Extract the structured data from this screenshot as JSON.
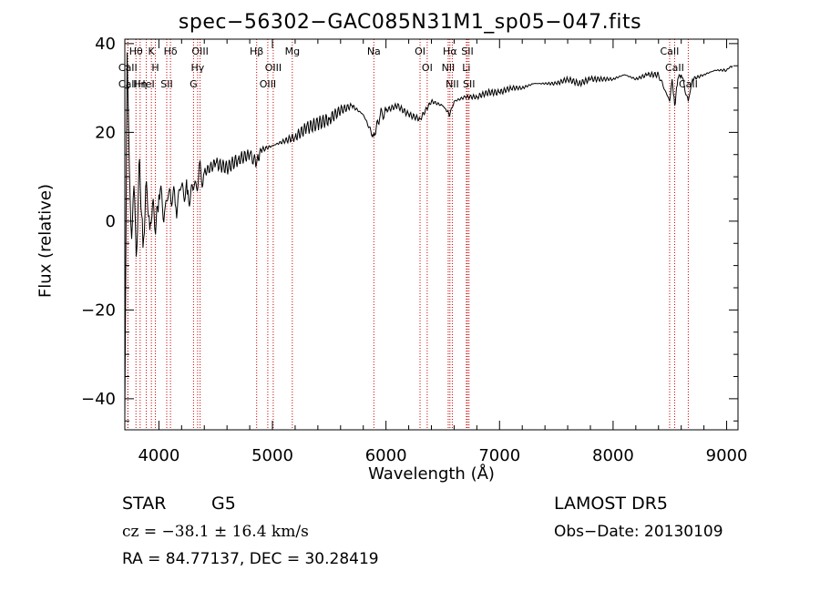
{
  "chart_data": {
    "type": "line",
    "title": "spec−56302−GAC085N31M1_sp05−047.fits",
    "xlabel": "Wavelength (Å)",
    "ylabel": "Flux (relative)",
    "xlim": [
      3700,
      9100
    ],
    "ylim": [
      -47,
      41
    ],
    "x_ticks": [
      4000,
      5000,
      6000,
      7000,
      8000,
      9000
    ],
    "x_tick_labels": [
      "4000",
      "5000",
      "6000",
      "7000",
      "8000",
      "9000"
    ],
    "y_ticks": [
      -40,
      -20,
      0,
      20,
      40
    ],
    "y_tick_labels": [
      "−40",
      "−20",
      "0",
      "20",
      "40"
    ],
    "grid": false,
    "line_color": "#000000",
    "marker_color": "#cc0000",
    "series": [
      {
        "x": [
          3700,
          3720,
          3740,
          3760,
          3780,
          3800,
          3830,
          3860,
          3890,
          3920,
          3950,
          3970,
          4000,
          4050,
          4100,
          4150,
          4200,
          4250,
          4300,
          4350,
          4400,
          4500,
          4600,
          4700,
          4800,
          4860,
          4900,
          5000,
          5100,
          5200,
          5300,
          5400,
          5500,
          5600,
          5700,
          5800,
          5890,
          5950,
          6000,
          6100,
          6200,
          6300,
          6400,
          6500,
          6563,
          6600,
          6700,
          6800,
          6900,
          7000,
          7100,
          7200,
          7300,
          7400,
          7500,
          7600,
          7700,
          7800,
          7900,
          8000,
          8100,
          8200,
          8300,
          8400,
          8498,
          8520,
          8542,
          8570,
          8600,
          8662,
          8700,
          8800,
          8900,
          9000,
          9050
        ],
        "y": [
          -44,
          38,
          12,
          -4,
          8,
          -8,
          14,
          -6,
          9,
          -2,
          5,
          -3,
          6,
          2,
          7,
          3,
          8,
          6,
          7,
          10,
          11,
          13,
          12,
          14,
          15,
          13,
          16,
          17,
          18,
          19,
          21,
          22,
          23,
          25,
          26,
          24,
          19,
          24,
          25,
          26,
          24,
          23,
          27,
          26,
          24,
          27,
          28,
          28,
          29,
          29,
          30,
          30,
          31,
          31,
          31,
          32,
          31,
          32,
          32,
          32,
          33,
          32,
          33,
          33,
          27,
          32,
          26,
          32,
          33,
          27,
          32,
          33,
          34,
          34,
          35
        ]
      }
    ],
    "spectral_lines": [
      {
        "name": "Hθ",
        "wavelength": 3798
      },
      {
        "name": "CaII",
        "wavelength": 3727
      },
      {
        "name": "CaII",
        "wavelength": 3727
      },
      {
        "name": "HeI",
        "wavelength": 3889
      },
      {
        "name": "Hη",
        "wavelength": 3835
      },
      {
        "name": "K",
        "wavelength": 3934
      },
      {
        "name": "H",
        "wavelength": 3969
      },
      {
        "name": "Hδ",
        "wavelength": 4102
      },
      {
        "name": "SII",
        "wavelength": 4069
      },
      {
        "name": "OIII",
        "wavelength": 4363
      },
      {
        "name": "Hγ",
        "wavelength": 4341
      },
      {
        "name": "G",
        "wavelength": 4305
      },
      {
        "name": "Hβ",
        "wavelength": 4861
      },
      {
        "name": "OIII",
        "wavelength": 5007
      },
      {
        "name": "OIII",
        "wavelength": 4959
      },
      {
        "name": "Mg",
        "wavelength": 5175
      },
      {
        "name": "Na",
        "wavelength": 5893
      },
      {
        "name": "OI",
        "wavelength": 6300
      },
      {
        "name": "OI",
        "wavelength": 6363
      },
      {
        "name": "Hα",
        "wavelength": 6563
      },
      {
        "name": "NII",
        "wavelength": 6548
      },
      {
        "name": "NII",
        "wavelength": 6584
      },
      {
        "name": "SII",
        "wavelength": 6717
      },
      {
        "name": "Li",
        "wavelength": 6708
      },
      {
        "name": "SII",
        "wavelength": 6731
      },
      {
        "name": "CaII",
        "wavelength": 8498
      },
      {
        "name": "CaII",
        "wavelength": 8542
      },
      {
        "name": "CaII",
        "wavelength": 8662
      }
    ]
  },
  "info": {
    "object_class": "STAR",
    "subclass": "G5",
    "release": "LAMOST  DR5",
    "cz": "cz = −38.1 ± 16.4 km/s",
    "obs_date": "Obs−Date: 20130109",
    "coords": "RA =  84.77137, DEC =  30.28419"
  }
}
